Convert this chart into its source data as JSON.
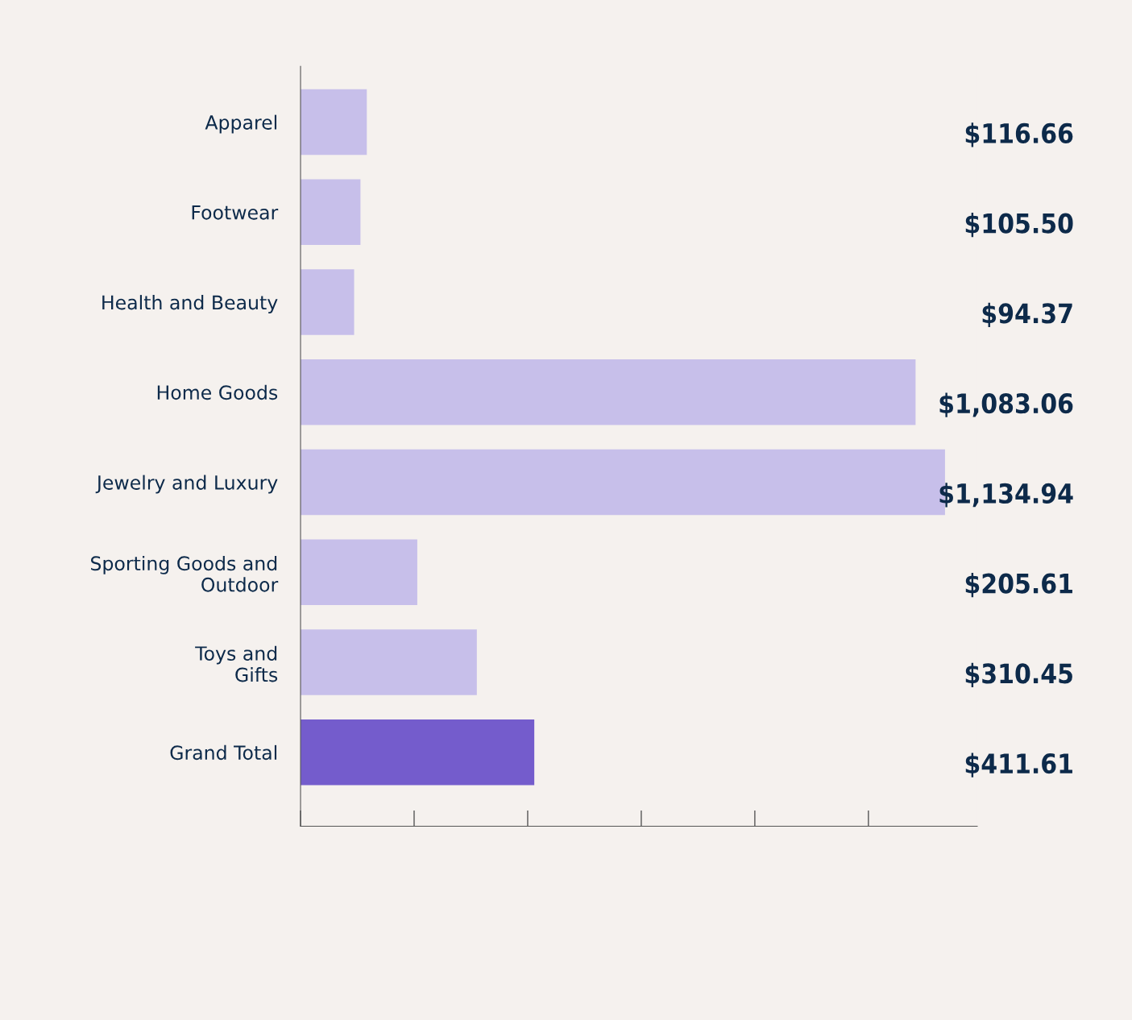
{
  "chart_data": {
    "type": "bar",
    "orientation": "horizontal",
    "categories": [
      "Apparel",
      "Footwear",
      "Health and Beauty",
      "Home Goods",
      "Jewelry and Luxury",
      "Sporting Goods and\nOutdoor",
      "Toys and\nGifts",
      "Grand Total"
    ],
    "values": [
      116.66,
      105.5,
      94.37,
      1083.06,
      1134.94,
      205.61,
      310.45,
      411.61
    ],
    "value_labels": [
      "$116.66",
      "$105.50",
      "$94.37",
      "$1,083.06",
      "$1,134.94",
      "$205.61",
      "$310.45",
      "$411.61"
    ],
    "colors": [
      "#c7bfea",
      "#c7bfea",
      "#c7bfea",
      "#c7bfea",
      "#c7bfea",
      "#c7bfea",
      "#c7bfea",
      "#745ccc"
    ],
    "tick_labels": "y",
    "grid": false,
    "legend": false
  }
}
